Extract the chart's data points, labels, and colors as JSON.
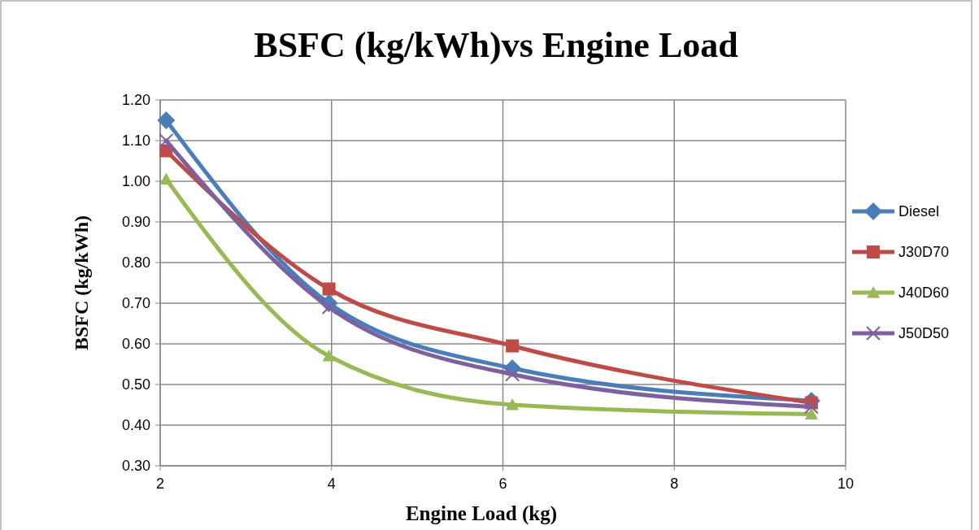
{
  "chart_data": {
    "type": "line",
    "title": "BSFC (kg/kWh)vs Engine Load",
    "xlabel": "Engine Load  (kg)",
    "ylabel": "BSFC (kg/kWh)",
    "x": [
      2.07,
      3.97,
      6.11,
      9.6
    ],
    "series": [
      {
        "name": "Diesel",
        "color": "#4a7ebb",
        "marker": "diamond",
        "values": [
          1.15,
          0.7,
          0.54,
          0.46
        ]
      },
      {
        "name": "J30D70",
        "color": "#be4b48",
        "marker": "square",
        "values": [
          1.075,
          0.735,
          0.595,
          0.455
        ]
      },
      {
        "name": "J40D60",
        "color": "#98b954",
        "marker": "triangle",
        "values": [
          1.005,
          0.57,
          0.45,
          0.427
        ]
      },
      {
        "name": "J50D50",
        "color": "#7d60a0",
        "marker": "cross",
        "values": [
          1.1,
          0.69,
          0.525,
          0.445
        ]
      }
    ],
    "xlim": [
      2,
      10
    ],
    "xticks": [
      2,
      4,
      6,
      8,
      10
    ],
    "ylim": [
      0.3,
      1.2
    ],
    "yticks": [
      {
        "value": 0.3,
        "label": "0.30"
      },
      {
        "value": 0.4,
        "label": "0.40"
      },
      {
        "value": 0.5,
        "label": "0.50"
      },
      {
        "value": 0.6,
        "label": "0.60"
      },
      {
        "value": 0.7,
        "label": "0.70"
      },
      {
        "value": 0.8,
        "label": "0.80"
      },
      {
        "value": 0.9,
        "label": "0.90"
      },
      {
        "value": 1.0,
        "label": "1.00"
      },
      {
        "value": 1.1,
        "label": "1.10"
      },
      {
        "value": 1.2,
        "label": "1.20"
      }
    ],
    "grid": true,
    "legend": "right"
  }
}
